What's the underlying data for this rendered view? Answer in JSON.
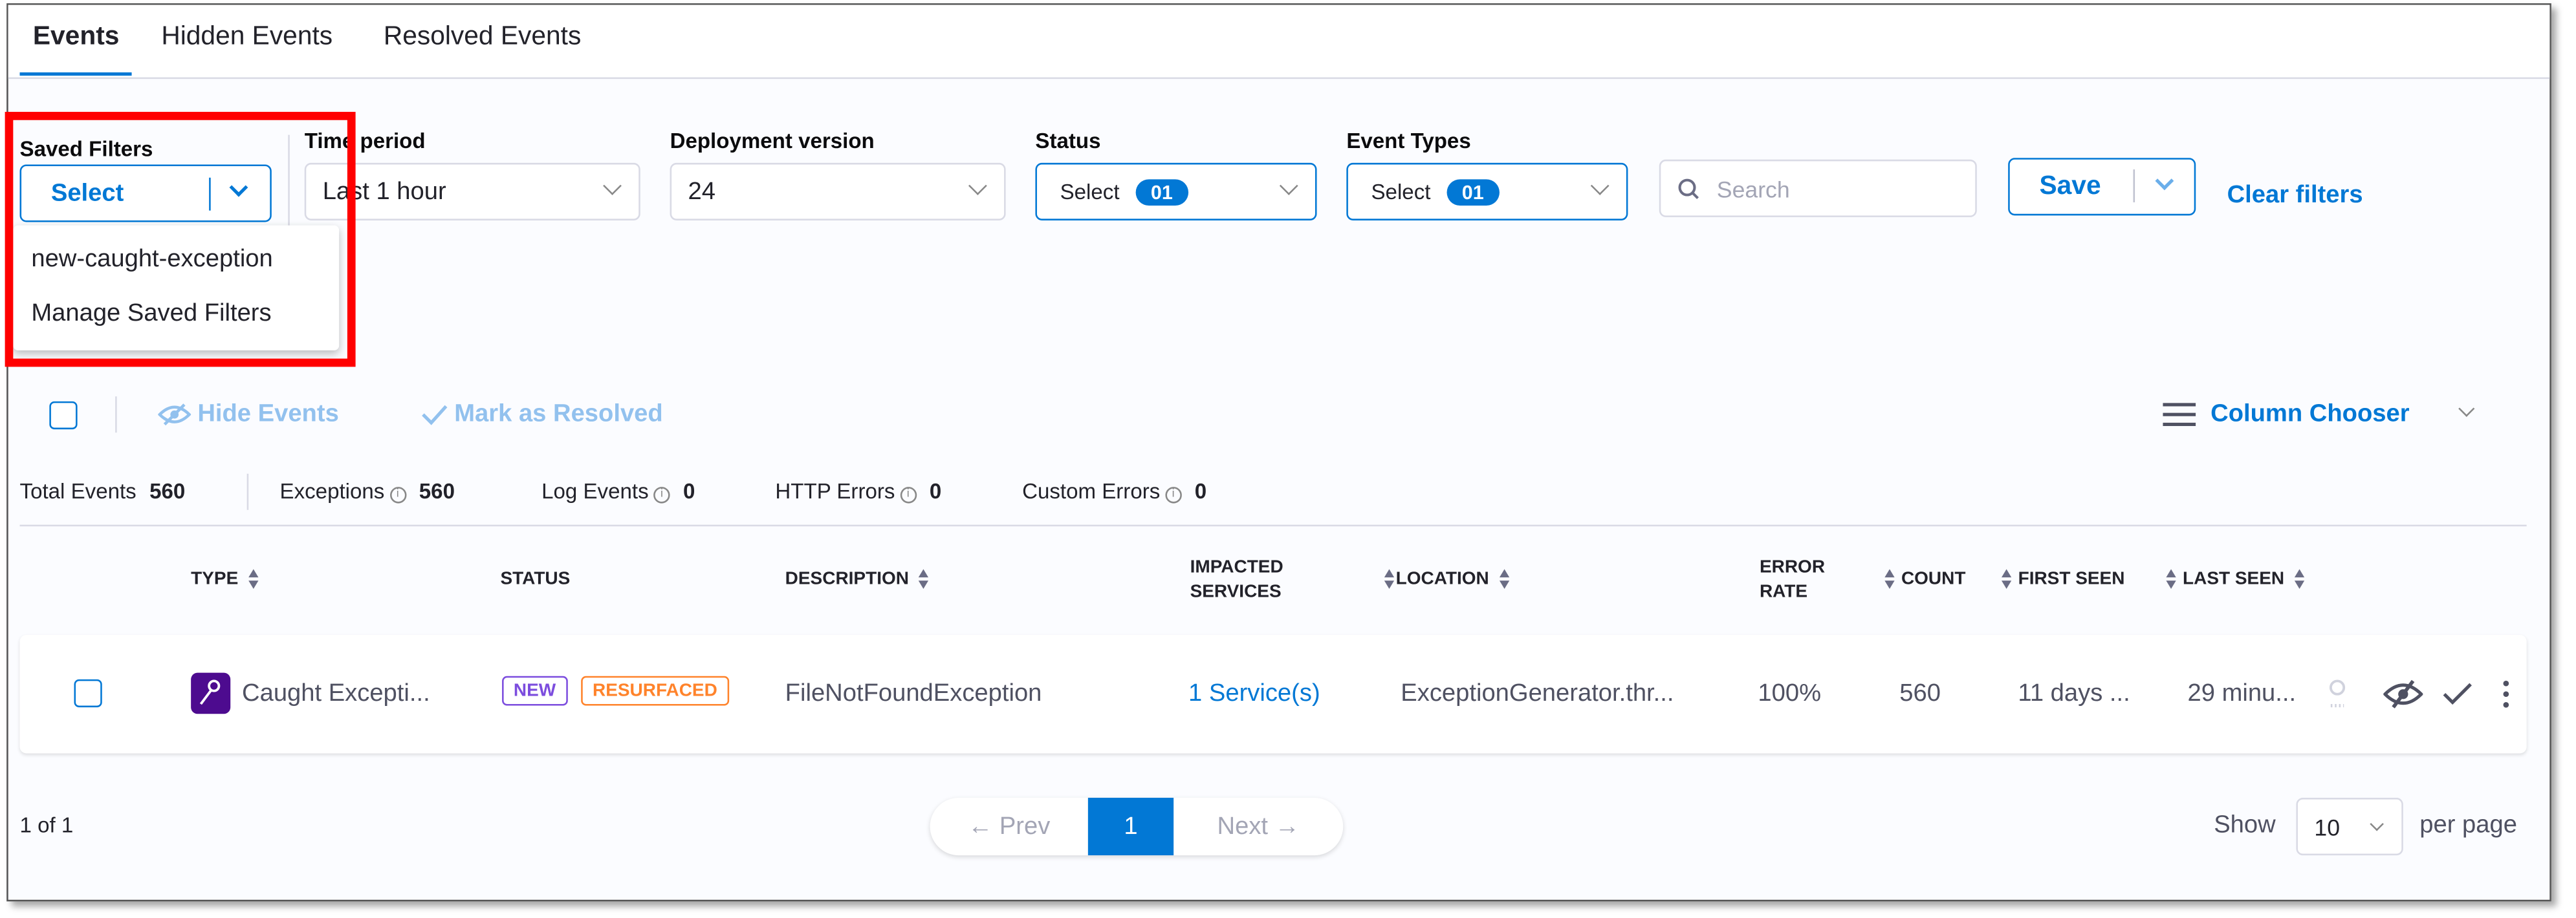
{
  "tabs": [
    {
      "label": "Events",
      "active": true
    },
    {
      "label": "Hidden Events"
    },
    {
      "label": "Resolved Events"
    }
  ],
  "filters": {
    "saved_filters": {
      "label": "Saved Filters",
      "value": "Select",
      "menu": [
        "new-caught-exception",
        "Manage Saved Filters"
      ]
    },
    "time_period": {
      "label": "Time period",
      "value": "Last 1 hour"
    },
    "deployment_version": {
      "label": "Deployment version",
      "value": "24"
    },
    "status": {
      "label": "Status",
      "value": "Select",
      "count": "01"
    },
    "event_types": {
      "label": "Event Types",
      "value": "Select",
      "count": "01"
    },
    "search": {
      "placeholder": "Search"
    },
    "save_label": "Save",
    "clear_label": "Clear filters"
  },
  "toolbar": {
    "hide_events": "Hide Events",
    "mark_resolved": "Mark as Resolved",
    "column_chooser": "Column Chooser"
  },
  "stats": {
    "total_label": "Total Events",
    "total": "560",
    "exceptions_label": "Exceptions",
    "exceptions": "560",
    "log_label": "Log Events",
    "log": "0",
    "http_label": "HTTP Errors",
    "http": "0",
    "custom_label": "Custom Errors",
    "custom": "0"
  },
  "table": {
    "headers": {
      "type": "TYPE",
      "status": "STATUS",
      "description": "DESCRIPTION",
      "impacted1": "IMPACTED",
      "impacted2": "SERVICES",
      "location": "LOCATION",
      "error1": "ERROR",
      "error2": "RATE",
      "count": "COUNT",
      "first_seen": "FIRST SEEN",
      "last_seen": "LAST SEEN"
    },
    "rows": [
      {
        "type": "Caught Excepti...",
        "status": [
          "NEW",
          "RESURFACED"
        ],
        "description": "FileNotFoundException",
        "impacted": "1 Service(s)",
        "location": "ExceptionGenerator.thr...",
        "error_rate": "100%",
        "count": "560",
        "first_seen": "11 days ...",
        "last_seen": "29 minu..."
      }
    ]
  },
  "pagination": {
    "summary": "1 of 1",
    "prev": "← Prev",
    "page": "1",
    "next": "Next →",
    "show": "Show",
    "per_page_value": "10",
    "per_page": "per page"
  },
  "colors": {
    "accent": "#0278d5",
    "new": "#7c4dde",
    "resurfaced": "#ff832b",
    "type_icon": "#4d0b8f",
    "highlight": "#ff0000"
  }
}
